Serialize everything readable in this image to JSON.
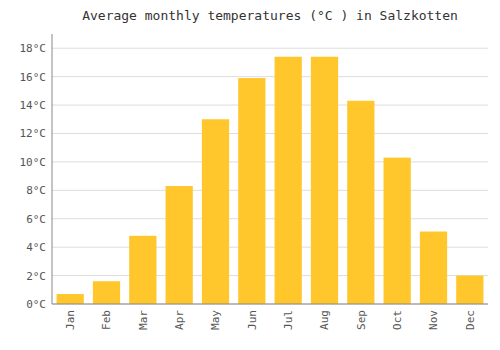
{
  "chart_data": {
    "type": "bar",
    "title": "Average monthly temperatures (°C ) in Salzkotten",
    "categories": [
      "Jan",
      "Feb",
      "Mar",
      "Apr",
      "May",
      "Jun",
      "Jul",
      "Aug",
      "Sep",
      "Oct",
      "Nov",
      "Dec"
    ],
    "values": [
      0.7,
      1.6,
      4.8,
      8.3,
      13.0,
      15.9,
      17.4,
      17.4,
      14.3,
      10.3,
      5.1,
      2.0
    ],
    "color": "#FFC72C",
    "ylim": [
      0,
      19.0
    ],
    "yticks": [
      {
        "value": 0,
        "label": "0°C"
      },
      {
        "value": 2,
        "label": "2°C"
      },
      {
        "value": 4,
        "label": "4°C"
      },
      {
        "value": 6,
        "label": "6°C"
      },
      {
        "value": 8,
        "label": "8°C"
      },
      {
        "value": 10,
        "label": "10°C"
      },
      {
        "value": 12,
        "label": "12°C"
      },
      {
        "value": 14,
        "label": "14°C"
      },
      {
        "value": 16,
        "label": "16°C"
      },
      {
        "value": 18,
        "label": "18°C"
      }
    ],
    "grid": true
  }
}
